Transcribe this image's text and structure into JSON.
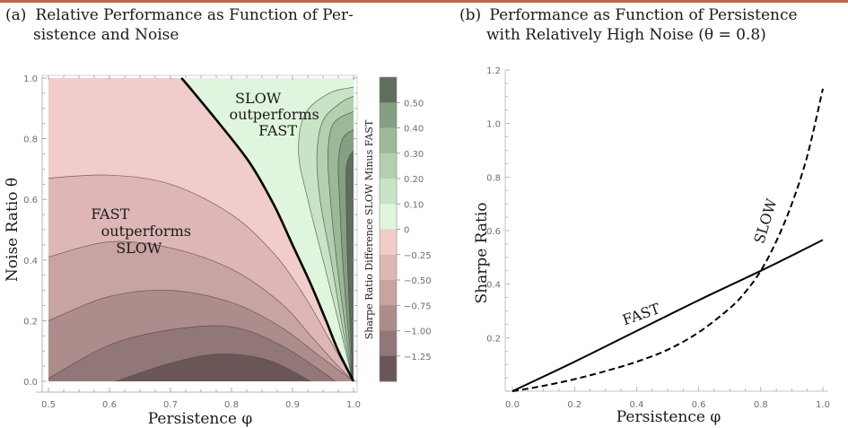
{
  "header_rule_color": "#b9674e",
  "panels": {
    "a": {
      "caption_label": "(a)",
      "caption_line1": "Relative Performance as Function of Per-",
      "caption_line2": "sistence and Noise"
    },
    "b": {
      "caption_label": "(b)",
      "caption_line1": "Performance as Function of Persistence",
      "caption_line2": "with Relatively High Noise (θ = 0.8)"
    }
  },
  "chart_data": [
    {
      "type": "heatmap",
      "subtype": "filled-contour",
      "title": "(a) Relative Performance as Function of Persistence and Noise",
      "xlabel": "Persistence φ",
      "ylabel": "Noise Ratio θ",
      "xlim": [
        0.5,
        1.0
      ],
      "ylim": [
        0.0,
        1.0
      ],
      "x_ticks": [
        "0.5",
        "0.6",
        "0.7",
        "0.8",
        "0.9",
        "1.0"
      ],
      "y_ticks": [
        "0.0",
        "0.2",
        "0.4",
        "0.6",
        "0.8",
        "1.0"
      ],
      "grid": false,
      "colorbar": {
        "title": "Sharpe Ratio Difference SLOW Minus FAST",
        "tick_labels": [
          "0.50",
          "0.40",
          "0.30",
          "0.20",
          "0.10",
          "0",
          "−0.25",
          "−0.50",
          "−0.75",
          "−1.00",
          "−1.25"
        ],
        "levels": [
          -1.25,
          -1.0,
          -0.75,
          -0.5,
          -0.25,
          0,
          0.1,
          0.2,
          0.3,
          0.4,
          0.5
        ],
        "band_colors": [
          "#e0f5de",
          "#c8e3c6",
          "#b2cfb0",
          "#9bb898",
          "#859f82",
          "#5f6f5d",
          "#f0cccb",
          "#ddb6b5",
          "#c7a3a2",
          "#ad8d8c",
          "#917777",
          "#6b5657"
        ],
        "placement": "right"
      },
      "zero_contour": {
        "description": "Thick black boundary where SLOW and FAST Sharpe ratios are equal",
        "points": [
          [
            0.718,
            1.0
          ],
          [
            0.735,
            0.96
          ],
          [
            0.78,
            0.85
          ],
          [
            0.83,
            0.72
          ],
          [
            0.87,
            0.58
          ],
          [
            0.9,
            0.45
          ],
          [
            0.93,
            0.32
          ],
          [
            0.955,
            0.2
          ],
          [
            0.975,
            0.1
          ],
          [
            1.0,
            0.0
          ]
        ]
      },
      "negative_contours": [
        {
          "level": -0.25,
          "points": [
            [
              0.5,
              0.67
            ],
            [
              0.6,
              0.68
            ],
            [
              0.7,
              0.65
            ],
            [
              0.8,
              0.55
            ],
            [
              0.87,
              0.42
            ],
            [
              0.92,
              0.28
            ],
            [
              0.96,
              0.14
            ],
            [
              1.0,
              0.0
            ]
          ]
        },
        {
          "level": -0.5,
          "points": [
            [
              0.5,
              0.41
            ],
            [
              0.6,
              0.46
            ],
            [
              0.7,
              0.44
            ],
            [
              0.8,
              0.37
            ],
            [
              0.88,
              0.26
            ],
            [
              0.93,
              0.15
            ],
            [
              0.97,
              0.06
            ],
            [
              1.0,
              0.0
            ]
          ]
        },
        {
          "level": -0.75,
          "points": [
            [
              0.5,
              0.2
            ],
            [
              0.6,
              0.28
            ],
            [
              0.7,
              0.3
            ],
            [
              0.8,
              0.26
            ],
            [
              0.88,
              0.18
            ],
            [
              0.94,
              0.09
            ],
            [
              1.0,
              0.0
            ]
          ]
        },
        {
          "level": -1.0,
          "points": [
            [
              0.5,
              0.01
            ],
            [
              0.6,
              0.12
            ],
            [
              0.7,
              0.17
            ],
            [
              0.8,
              0.18
            ],
            [
              0.88,
              0.12
            ],
            [
              0.95,
              0.03
            ],
            [
              0.97,
              0.0
            ]
          ]
        },
        {
          "level": -1.25,
          "points": [
            [
              0.61,
              0.0
            ],
            [
              0.7,
              0.06
            ],
            [
              0.78,
              0.09
            ],
            [
              0.86,
              0.07
            ],
            [
              0.93,
              0.0
            ]
          ]
        }
      ],
      "positive_contours": [
        {
          "level": 0.1,
          "points": [
            [
              0.999,
              0.0
            ],
            [
              0.975,
              0.2
            ],
            [
              0.95,
              0.4
            ],
            [
              0.925,
              0.6
            ],
            [
              0.91,
              0.75
            ],
            [
              0.92,
              0.88
            ],
            [
              0.96,
              0.95
            ],
            [
              1.0,
              0.97
            ]
          ]
        },
        {
          "level": 0.2,
          "points": [
            [
              0.999,
              0.0
            ],
            [
              0.98,
              0.2
            ],
            [
              0.963,
              0.4
            ],
            [
              0.945,
              0.6
            ],
            [
              0.94,
              0.75
            ],
            [
              0.95,
              0.86
            ],
            [
              0.98,
              0.92
            ],
            [
              1.0,
              0.94
            ]
          ]
        },
        {
          "level": 0.3,
          "points": [
            [
              0.999,
              0.0
            ],
            [
              0.985,
              0.2
            ],
            [
              0.972,
              0.4
            ],
            [
              0.962,
              0.6
            ],
            [
              0.958,
              0.75
            ],
            [
              0.967,
              0.85
            ],
            [
              1.0,
              0.89
            ]
          ]
        },
        {
          "level": 0.4,
          "points": [
            [
              0.999,
              0.0
            ],
            [
              0.99,
              0.2
            ],
            [
              0.982,
              0.4
            ],
            [
              0.977,
              0.6
            ],
            [
              0.975,
              0.72
            ],
            [
              0.982,
              0.8
            ],
            [
              1.0,
              0.83
            ]
          ]
        },
        {
          "level": 0.5,
          "points": [
            [
              0.999,
              0.0
            ],
            [
              0.994,
              0.2
            ],
            [
              0.99,
              0.4
            ],
            [
              0.988,
              0.6
            ],
            [
              0.988,
              0.7
            ],
            [
              0.993,
              0.74
            ],
            [
              1.0,
              0.76
            ]
          ]
        }
      ],
      "annotations": [
        {
          "text_lines": [
            "SLOW",
            "outperforms",
            "FAST"
          ],
          "x": 0.87,
          "y": 0.87
        },
        {
          "text_lines": [
            "FAST",
            "outperforms",
            "SLOW"
          ],
          "x": 0.66,
          "y": 0.48
        }
      ]
    },
    {
      "type": "line",
      "title": "(b) Performance as Function of Persistence with Relatively High Noise (θ = 0.8)",
      "xlabel": "Persistence φ",
      "ylabel": "Sharpe Ratio",
      "xlim": [
        0.0,
        1.0
      ],
      "ylim": [
        0.0,
        1.2
      ],
      "x_ticks": [
        "0.0",
        "0.2",
        "0.4",
        "0.6",
        "0.8",
        "1.0"
      ],
      "y_ticks": [
        "0.2",
        "0.4",
        "0.6",
        "0.8",
        "1.0",
        "1.2"
      ],
      "grid": false,
      "legend": "none (inline labels)",
      "series": [
        {
          "name": "FAST",
          "style": "solid",
          "x": [
            0.0,
            0.2,
            0.4,
            0.6,
            0.8,
            1.0
          ],
          "y": [
            0.0,
            0.11,
            0.225,
            0.34,
            0.45,
            0.565
          ]
        },
        {
          "name": "SLOW",
          "style": "dashed",
          "x": [
            0.0,
            0.1,
            0.2,
            0.3,
            0.4,
            0.5,
            0.6,
            0.7,
            0.75,
            0.8,
            0.85,
            0.9,
            0.95,
            1.0
          ],
          "y": [
            0.0,
            0.02,
            0.045,
            0.075,
            0.11,
            0.155,
            0.22,
            0.31,
            0.37,
            0.45,
            0.56,
            0.7,
            0.88,
            1.13
          ]
        }
      ],
      "annotations": [
        {
          "text": "FAST",
          "x": 0.42,
          "y": 0.27,
          "rotation_deg": -19
        },
        {
          "text": "SLOW",
          "x": 0.83,
          "y": 0.63,
          "rotation_deg": -73
        }
      ]
    }
  ]
}
